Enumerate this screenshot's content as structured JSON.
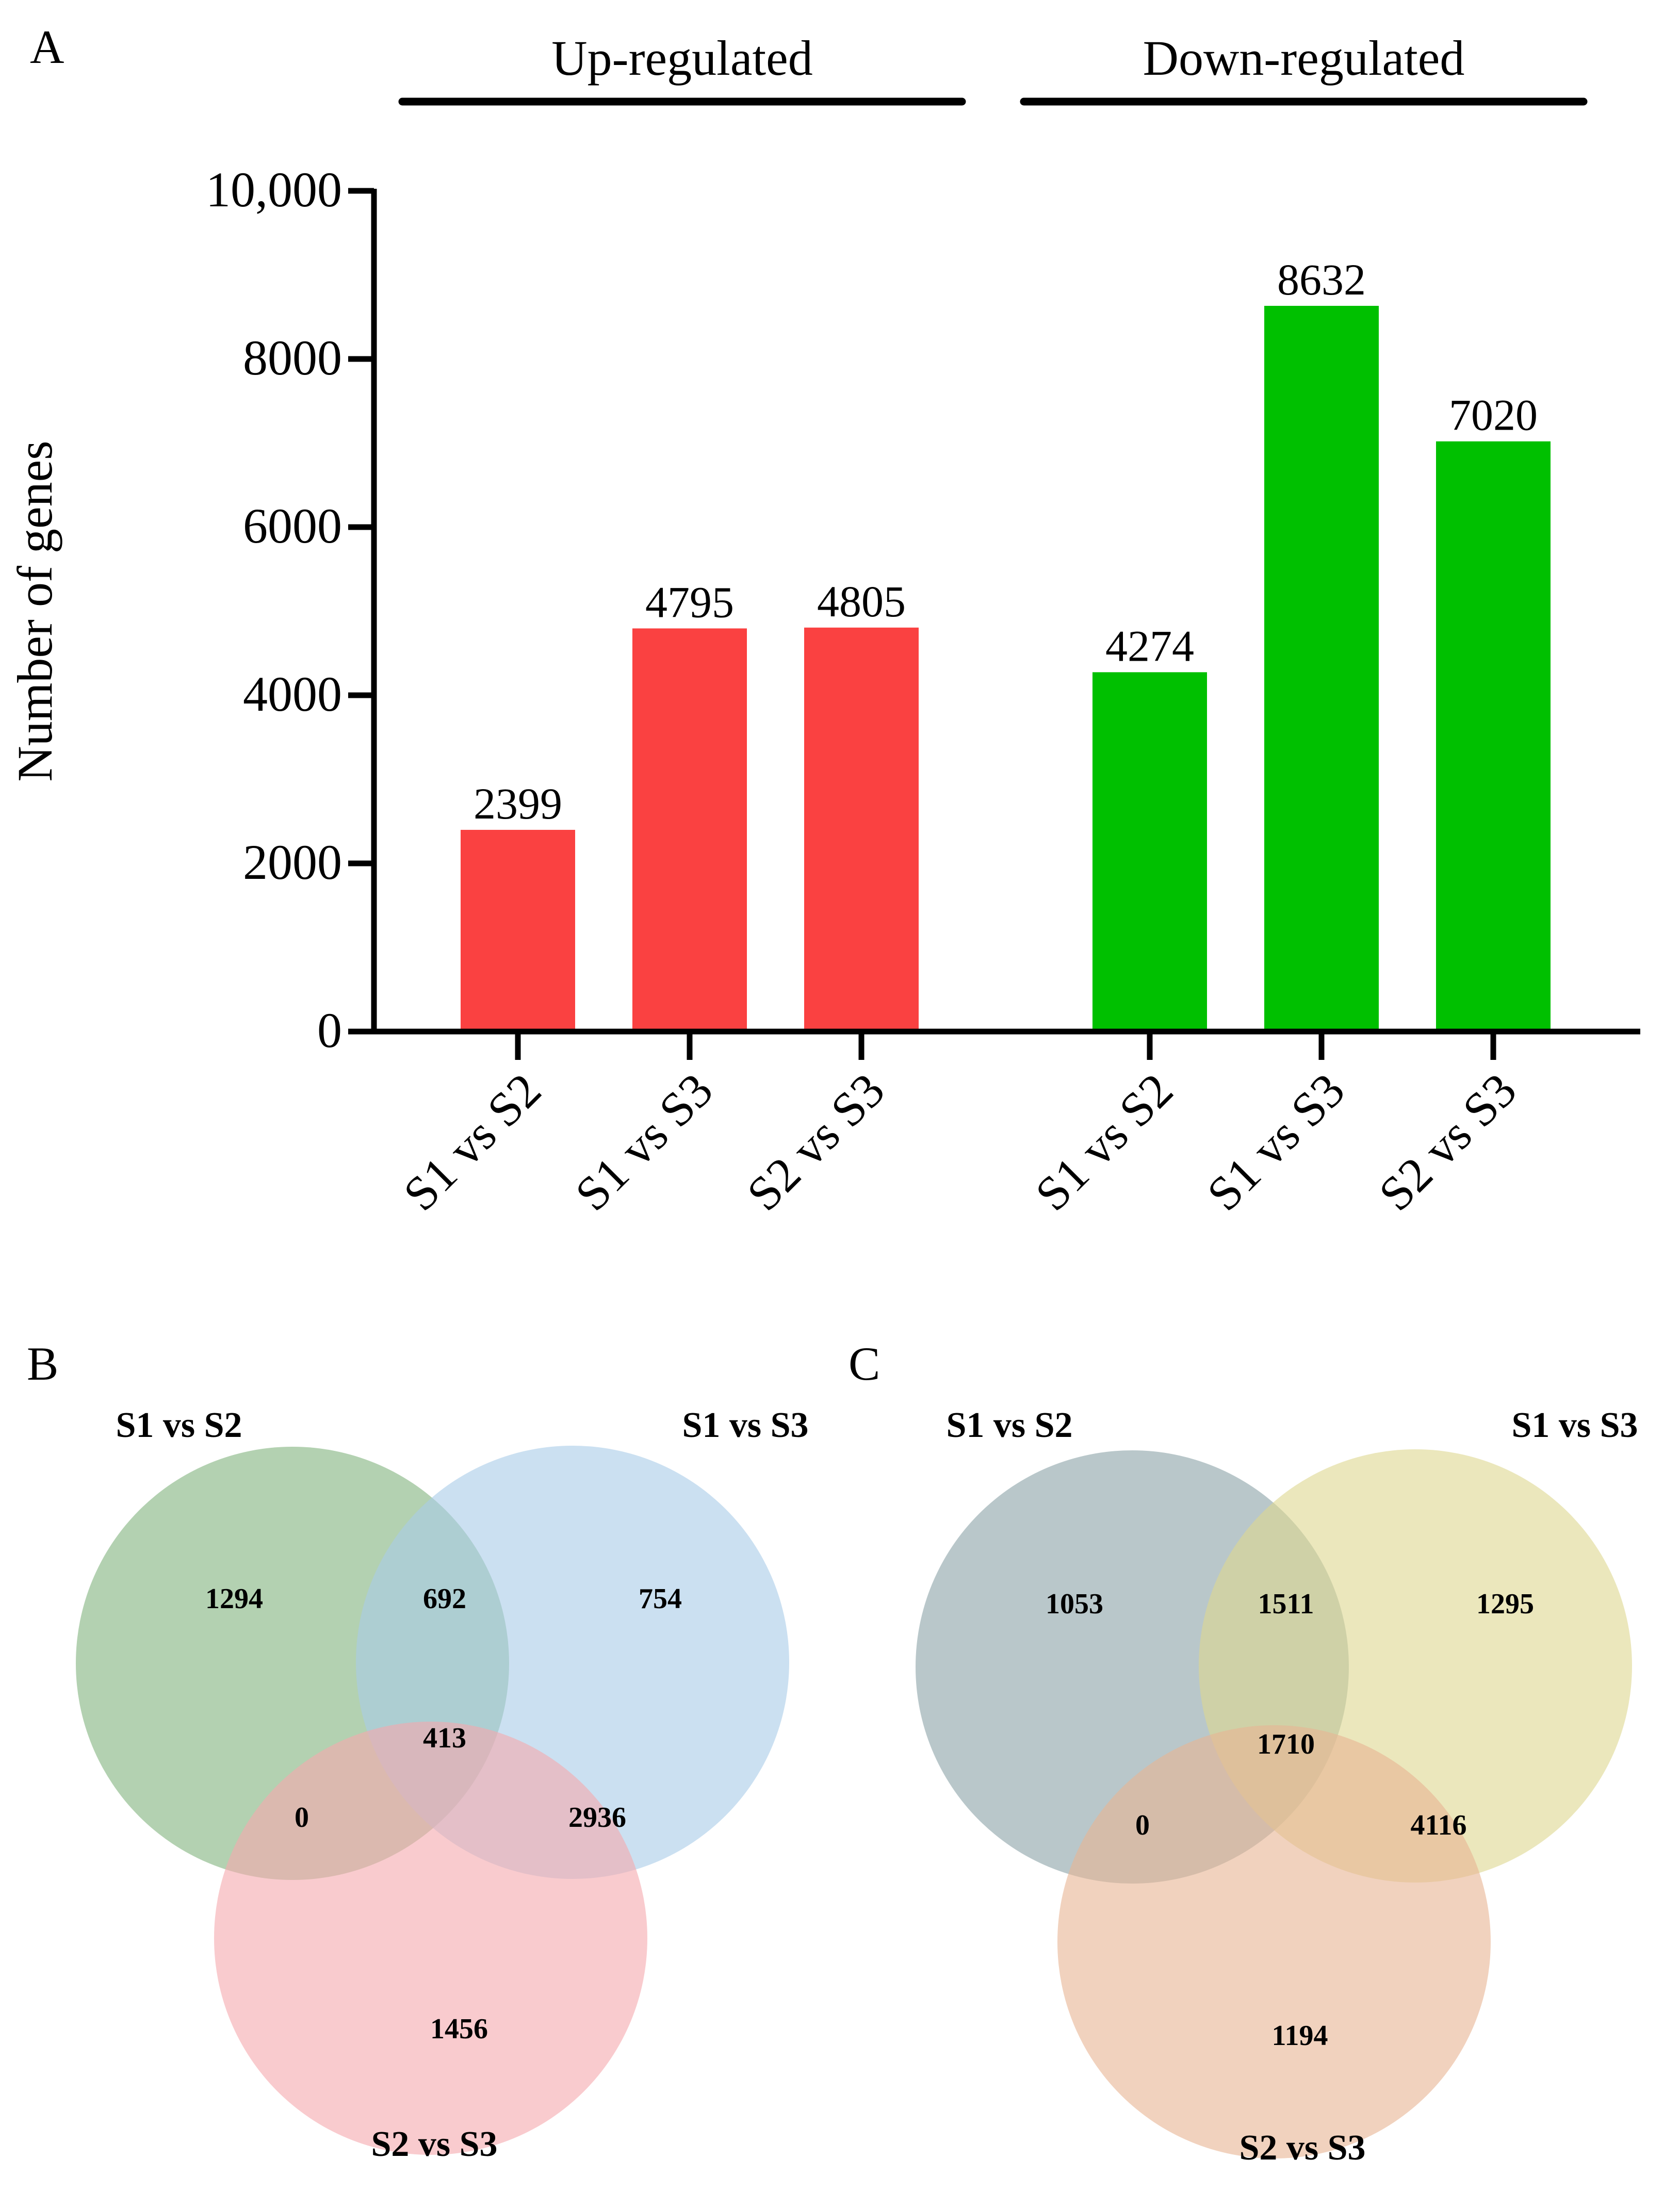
{
  "chart_data": [
    {
      "panel_label": "A",
      "type": "bar",
      "ylabel": "Number of genes",
      "ylim": [
        0,
        10000
      ],
      "yticks": [
        "0",
        "2000",
        "4000",
        "6000",
        "8000",
        "10,000"
      ],
      "ytick_values": [
        0,
        2000,
        4000,
        6000,
        8000,
        10000
      ],
      "groups": [
        {
          "label": "Up-regulated",
          "color": "#fa4141",
          "categories": [
            "S1 vs S2",
            "S1 vs S3",
            "S2 vs S3"
          ],
          "values": [
            2399,
            4795,
            4805
          ]
        },
        {
          "label": "Down-regulated",
          "color": "#00c000",
          "categories": [
            "S1 vs S2",
            "S1 vs S3",
            "S2 vs S3"
          ],
          "values": [
            4274,
            8632,
            7020
          ]
        }
      ]
    },
    {
      "panel_label": "B",
      "type": "venn",
      "sets": [
        {
          "label": "S1 vs S2",
          "color": "#80b27d"
        },
        {
          "label": "S1 vs S3",
          "color": "#a9cbe8"
        },
        {
          "label": "S2 vs S3",
          "color": "#f5a9ad"
        }
      ],
      "regions": {
        "only_1": "1294",
        "only_2": "754",
        "only_3": "1456",
        "1_2": "692",
        "1_3": "0",
        "2_3": "2936",
        "all": "413"
      }
    },
    {
      "panel_label": "C",
      "type": "venn",
      "sets": [
        {
          "label": "S1 vs S2",
          "color": "#8aa2a6"
        },
        {
          "label": "S1 vs S3",
          "color": "#ded790"
        },
        {
          "label": "S2 vs S3",
          "color": "#e8b492"
        }
      ],
      "regions": {
        "only_1": "1053",
        "only_2": "1295",
        "only_3": "1194",
        "1_2": "1511",
        "1_3": "0",
        "2_3": "4116",
        "all": "1710"
      }
    }
  ]
}
